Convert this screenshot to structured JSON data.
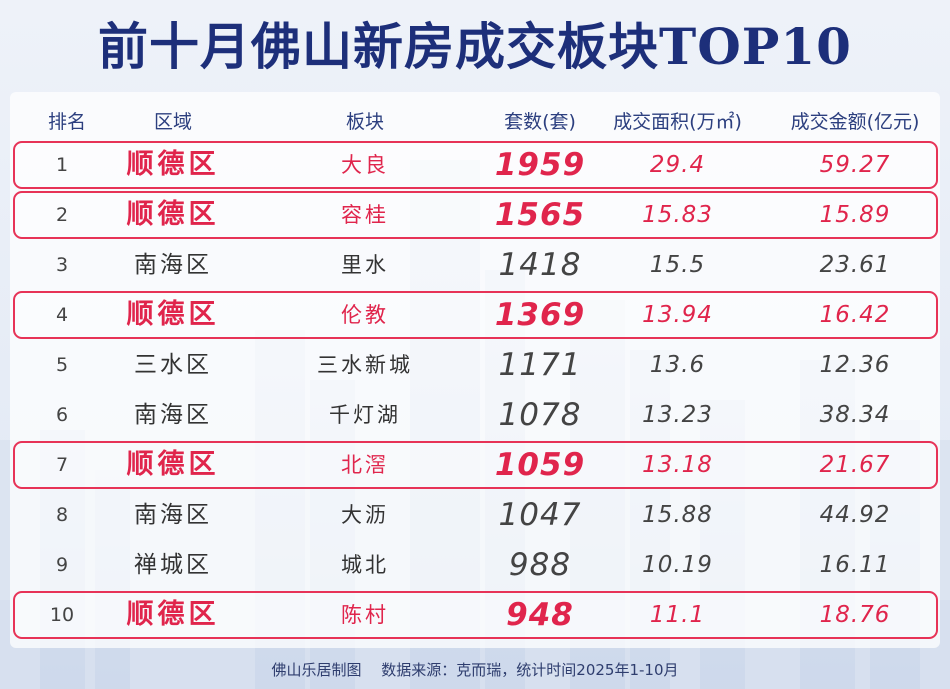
{
  "title": "前十月佛山新房成交板块TOP10",
  "colors": {
    "title": "#1d2f7a",
    "highlight": "#e0254c",
    "header_text": "#2c3f7f",
    "background": "#e6ecf6"
  },
  "columns": {
    "rank": "排名",
    "district": "区域",
    "block": "板块",
    "count": "套数(套)",
    "area": "成交面积(万㎡)",
    "amount": "成交金额(亿元)"
  },
  "chart_data": {
    "type": "table",
    "title": "前十月佛山新房成交板块TOP10",
    "columns": [
      "排名",
      "区域",
      "板块",
      "套数(套)",
      "成交面积(万㎡)",
      "成交金额(亿元)"
    ],
    "rows": [
      {
        "rank": "1",
        "district": "顺德区",
        "block": "大良",
        "count": "1959",
        "area": "29.4",
        "amount": "59.27",
        "highlight": true
      },
      {
        "rank": "2",
        "district": "顺德区",
        "block": "容桂",
        "count": "1565",
        "area": "15.83",
        "amount": "15.89",
        "highlight": true
      },
      {
        "rank": "3",
        "district": "南海区",
        "block": "里水",
        "count": "1418",
        "area": "15.5",
        "amount": "23.61",
        "highlight": false
      },
      {
        "rank": "4",
        "district": "顺德区",
        "block": "伦教",
        "count": "1369",
        "area": "13.94",
        "amount": "16.42",
        "highlight": true
      },
      {
        "rank": "5",
        "district": "三水区",
        "block": "三水新城",
        "count": "1171",
        "area": "13.6",
        "amount": "12.36",
        "highlight": false
      },
      {
        "rank": "6",
        "district": "南海区",
        "block": "千灯湖",
        "count": "1078",
        "area": "13.23",
        "amount": "38.34",
        "highlight": false
      },
      {
        "rank": "7",
        "district": "顺德区",
        "block": "北滘",
        "count": "1059",
        "area": "13.18",
        "amount": "21.67",
        "highlight": true
      },
      {
        "rank": "8",
        "district": "南海区",
        "block": "大沥",
        "count": "1047",
        "area": "15.88",
        "amount": "44.92",
        "highlight": false
      },
      {
        "rank": "9",
        "district": "禅城区",
        "block": "城北",
        "count": "988",
        "area": "10.19",
        "amount": "16.11",
        "highlight": false
      },
      {
        "rank": "10",
        "district": "顺德区",
        "block": "陈村",
        "count": "948",
        "area": "11.1",
        "amount": "18.76",
        "highlight": true
      }
    ]
  },
  "footer": "佛山乐居制图　 数据来源：克而瑞，统计时间2025年1-10月"
}
